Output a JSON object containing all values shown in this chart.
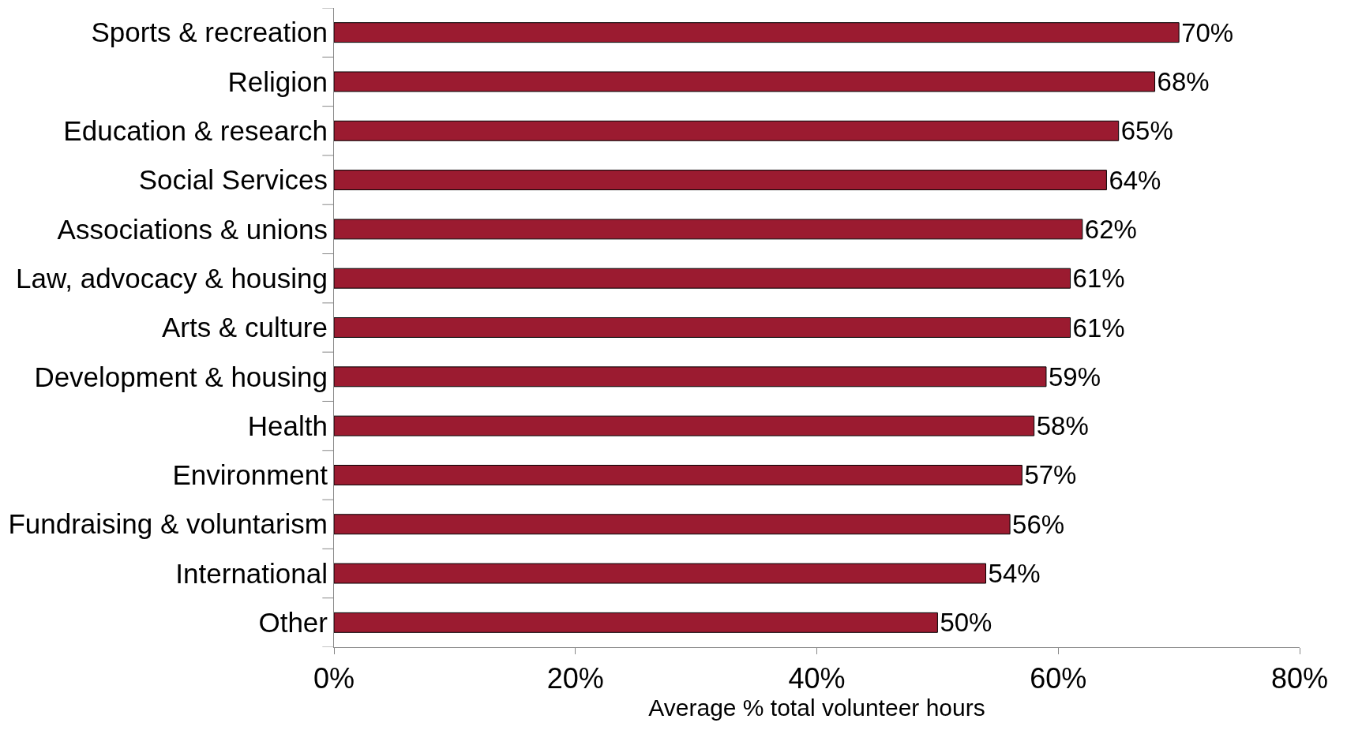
{
  "chart_data": {
    "type": "bar",
    "orientation": "horizontal",
    "xlabel": "Average % total volunteer hours",
    "categories": [
      "Sports & recreation",
      "Religion",
      "Education & research",
      "Social Services",
      "Associations & unions",
      "Law, advocacy & housing",
      "Arts & culture",
      "Development & housing",
      "Health",
      "Environment",
      "Fundraising & voluntarism",
      "International",
      "Other"
    ],
    "values": [
      70,
      68,
      65,
      64,
      62,
      61,
      61,
      59,
      58,
      57,
      56,
      54,
      50
    ],
    "value_labels": [
      "70%",
      "68%",
      "65%",
      "64%",
      "62%",
      "61%",
      "61%",
      "59%",
      "58%",
      "57%",
      "56%",
      "54%",
      "50%"
    ],
    "color": "#9b1b30",
    "xlim": [
      0,
      80
    ],
    "xticks": [
      {
        "value": 0,
        "label": "0%"
      },
      {
        "value": 20,
        "label": "20%"
      },
      {
        "value": 40,
        "label": "40%"
      },
      {
        "value": 60,
        "label": "60%"
      },
      {
        "value": 80,
        "label": "80%"
      }
    ]
  }
}
